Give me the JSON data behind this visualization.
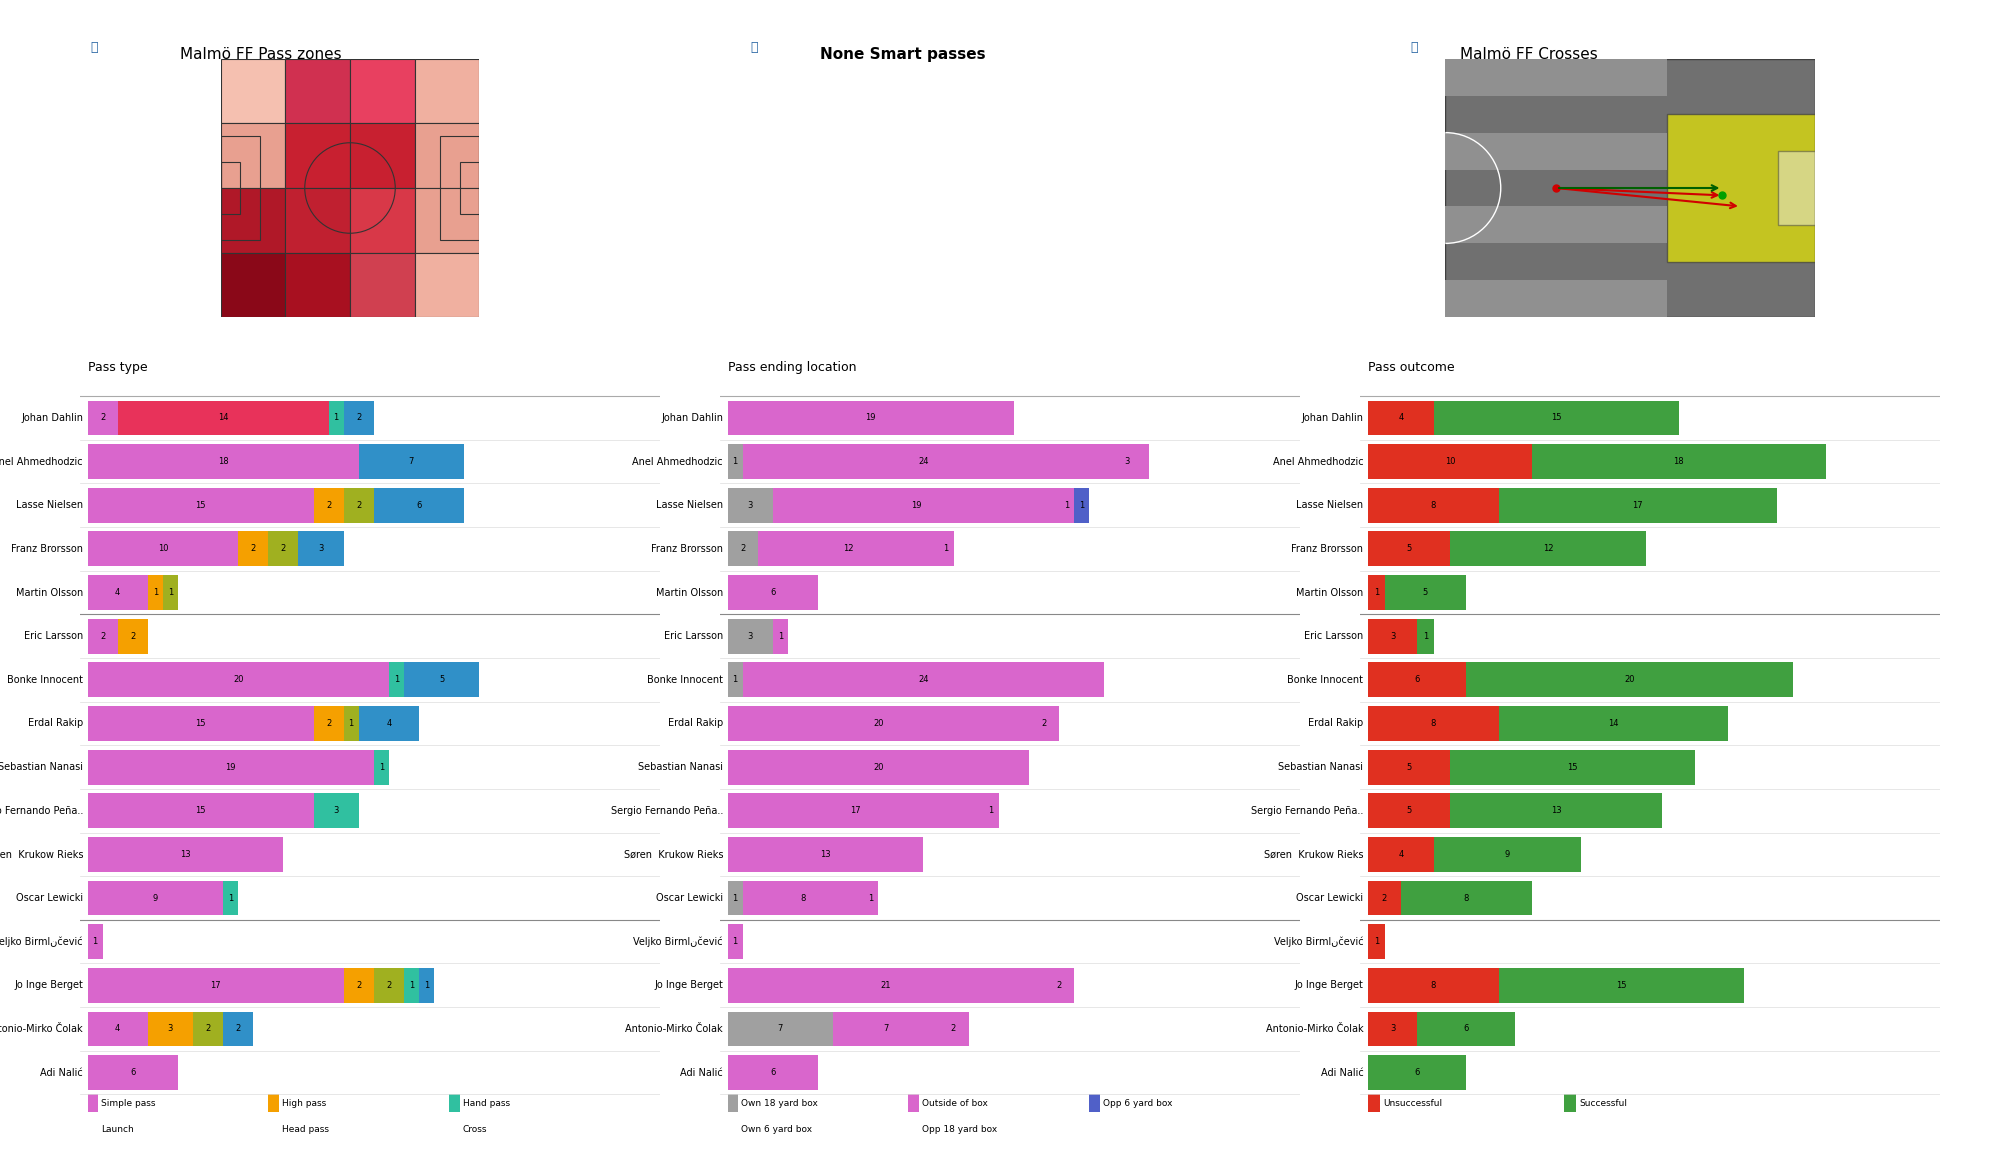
{
  "title1": "Malmö FF Pass zones",
  "title2": "None Smart passes",
  "title3": "Malmö FF Crosses",
  "players": [
    "Johan Dahlin",
    "Anel Ahmedhodzic",
    "Lasse Nielsen",
    "Franz Brorsson",
    "Martin Olsson",
    "Eric Larsson",
    "Bonke Innocent",
    "Erdal Rakip",
    "Sebastian Nanasi",
    "Sergio Fernando Peña..",
    "Søren  Krukow Rieks",
    "Oscar Lewicki",
    "Veljko Birmانčević",
    "Jo Inge Berget",
    "Antonio-Mirko Čolak",
    "Adi Nalić"
  ],
  "pass_type": {
    "simple": [
      2,
      18,
      15,
      10,
      4,
      2,
      20,
      15,
      19,
      15,
      13,
      9,
      1,
      17,
      4,
      6
    ],
    "launch": [
      14,
      0,
      0,
      0,
      0,
      0,
      0,
      0,
      0,
      0,
      0,
      0,
      0,
      0,
      0,
      0
    ],
    "high": [
      0,
      0,
      2,
      2,
      1,
      2,
      0,
      2,
      0,
      0,
      0,
      0,
      0,
      2,
      3,
      0
    ],
    "head": [
      0,
      0,
      2,
      2,
      1,
      0,
      0,
      1,
      0,
      0,
      0,
      0,
      0,
      2,
      2,
      0
    ],
    "hand": [
      1,
      0,
      0,
      0,
      0,
      0,
      1,
      0,
      1,
      3,
      0,
      1,
      0,
      1,
      0,
      0
    ],
    "cross": [
      2,
      7,
      6,
      3,
      0,
      0,
      5,
      4,
      0,
      0,
      0,
      0,
      0,
      1,
      2,
      0
    ]
  },
  "pass_end_location": {
    "own18": [
      0,
      1,
      3,
      2,
      0,
      3,
      1,
      0,
      0,
      0,
      0,
      1,
      0,
      0,
      7,
      0
    ],
    "own6": [
      0,
      0,
      0,
      0,
      0,
      0,
      0,
      0,
      0,
      0,
      0,
      0,
      0,
      0,
      0,
      0
    ],
    "outside": [
      19,
      24,
      19,
      12,
      6,
      1,
      24,
      20,
      20,
      17,
      13,
      8,
      1,
      21,
      7,
      6
    ],
    "opp18": [
      0,
      3,
      1,
      1,
      0,
      0,
      0,
      2,
      0,
      1,
      0,
      1,
      0,
      2,
      2,
      0
    ],
    "opp6": [
      0,
      0,
      1,
      0,
      0,
      0,
      0,
      0,
      0,
      0,
      0,
      0,
      0,
      0,
      0,
      0
    ],
    "opp6b": [
      0,
      0,
      1,
      0,
      0,
      0,
      0,
      0,
      0,
      0,
      0,
      0,
      0,
      0,
      0,
      0
    ]
  },
  "pass_outcome": {
    "unsuccessful": [
      4,
      10,
      8,
      5,
      1,
      3,
      6,
      8,
      5,
      5,
      4,
      2,
      1,
      8,
      3,
      0
    ],
    "successful": [
      15,
      18,
      17,
      12,
      5,
      1,
      20,
      14,
      15,
      13,
      9,
      8,
      0,
      15,
      6,
      6
    ]
  },
  "heatmap_colors": [
    [
      "#e8a090",
      "#c0182c",
      "#c82030",
      "#e8907c"
    ],
    [
      "#e09080",
      "#c02028",
      "#c02030",
      "#e09080"
    ],
    [
      "#b80820",
      "#c02028",
      "#d02028",
      "#e09080"
    ],
    [
      "#900010",
      "#b01020",
      "#d04040",
      "#e0a090"
    ]
  ],
  "colors": {
    "simple": "#d966cc",
    "launch": "#e8325a",
    "high": "#f5a000",
    "head": "#a0b020",
    "hand": "#30c0a0",
    "cross": "#3090c8",
    "own18": "#a0a0a0",
    "own6": "#d0c0c0",
    "outside": "#d966cc",
    "opp18": "#d966cc",
    "opp6": "#5060c8",
    "unsuccessful": "#e03020",
    "successful": "#40a040"
  },
  "separator_rows": [
    5,
    12
  ],
  "background_color": "#ffffff"
}
